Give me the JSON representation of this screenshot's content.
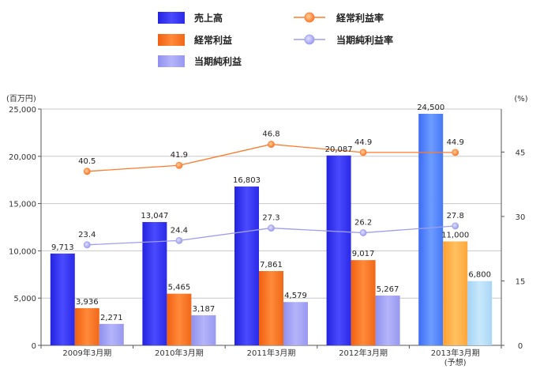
{
  "chart_data": {
    "type": "bar",
    "categories": [
      "2009年3月期",
      "2010年3月期",
      "2011年3月期",
      "2012年3月期",
      "2013年3月期"
    ],
    "category_note": "(予想)",
    "y_left_unit": "(百万円)",
    "y_right_unit": "(%)",
    "ylim_left": [
      0,
      25000
    ],
    "yticks_left": [
      "0",
      "5,000",
      "10,000",
      "15,000",
      "20,000",
      "25,000"
    ],
    "ylim_right": [
      0,
      55
    ],
    "yticks_right": [
      "0",
      "15",
      "30",
      "45"
    ],
    "grid": true,
    "legend_position": "top",
    "series": [
      {
        "name": "売上高",
        "kind": "bar",
        "axis": "left",
        "color": "#3333ee",
        "values": [
          9713,
          13047,
          16803,
          20087,
          24500
        ],
        "labels": [
          "9,713",
          "13,047",
          "16,803",
          "20,087",
          "24,500"
        ]
      },
      {
        "name": "経常利益",
        "kind": "bar",
        "axis": "left",
        "color": "#ff7a2a",
        "values": [
          3936,
          5465,
          7861,
          9017,
          11000
        ],
        "labels": [
          "3,936",
          "5,465",
          "7,861",
          "9,017",
          "11,000"
        ]
      },
      {
        "name": "当期純利益",
        "kind": "bar",
        "axis": "left",
        "color": "#a3a3f5",
        "values": [
          2271,
          3187,
          4579,
          5267,
          6800
        ],
        "labels": [
          "2,271",
          "3,187",
          "4,579",
          "5,267",
          "6,800"
        ]
      },
      {
        "name": "経常利益率",
        "kind": "line",
        "axis": "right",
        "color": "#ff7a2a",
        "values": [
          40.5,
          41.9,
          46.8,
          44.9,
          44.9
        ],
        "labels": [
          "40.5",
          "41.9",
          "46.8",
          "44.9",
          "44.9"
        ]
      },
      {
        "name": "当期純利益率",
        "kind": "line",
        "axis": "right",
        "color": "#9e9ef0",
        "values": [
          23.4,
          24.4,
          27.3,
          26.2,
          27.8
        ],
        "labels": [
          "23.4",
          "24.4",
          "27.3",
          "26.2",
          "27.8"
        ]
      }
    ],
    "forecast_colors": [
      "#5a8cff",
      "#ffb24d",
      "#b4dcf7"
    ]
  }
}
